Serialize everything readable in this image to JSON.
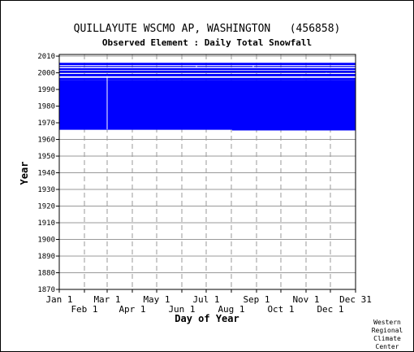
{
  "chart_data": {
    "type": "heatmap",
    "title": "QUILLAYUTE WSCMO AP, WASHINGTON   (456858)",
    "subtitle": "Observed Element : Daily Total Snowfall",
    "xlabel": "Day of Year",
    "ylabel": "Year",
    "xlim": [
      1,
      366
    ],
    "ylim": [
      1870,
      2011
    ],
    "yticks": [
      1870,
      1880,
      1890,
      1900,
      1910,
      1920,
      1930,
      1940,
      1950,
      1960,
      1970,
      1980,
      1990,
      2000,
      2010
    ],
    "xticks_top": [
      {
        "label": "Jan 1",
        "day": 1
      },
      {
        "label": "Mar 1",
        "day": 60
      },
      {
        "label": "May 1",
        "day": 121
      },
      {
        "label": "Jul 1",
        "day": 182
      },
      {
        "label": "Sep 1",
        "day": 244
      },
      {
        "label": "Nov 1",
        "day": 305
      },
      {
        "label": "Dec 31",
        "day": 366
      }
    ],
    "xticks_bottom": [
      {
        "label": "Feb 1",
        "day": 32
      },
      {
        "label": "Apr 1",
        "day": 91
      },
      {
        "label": "Jun 1",
        "day": 152
      },
      {
        "label": "Aug 1",
        "day": 213
      },
      {
        "label": "Oct 1",
        "day": 274
      },
      {
        "label": "Dec 1",
        "day": 335
      }
    ],
    "grid": true,
    "series": [
      {
        "color": "#0000ff",
        "spans": [
          {
            "start_day": 1,
            "end_day": 214,
            "start_year": 1965.8,
            "end_year": 1995.5
          },
          {
            "start_day": 214,
            "end_day": 366,
            "start_year": 1965.4,
            "end_year": 1995.5
          },
          {
            "start_day": 1,
            "end_day": 366,
            "start_year": 1995.5,
            "end_year": 1997.0
          },
          {
            "start_day": 1,
            "end_day": 366,
            "start_year": 1997.9,
            "end_year": 1999.3
          },
          {
            "start_day": 1,
            "end_day": 366,
            "start_year": 2000.0,
            "end_year": 2001.2
          },
          {
            "start_day": 1,
            "end_day": 366,
            "start_year": 2001.6,
            "end_year": 2002.8
          },
          {
            "start_day": 1,
            "end_day": 366,
            "start_year": 2003.5,
            "end_year": 2004.1
          },
          {
            "start_day": 1,
            "end_day": 366,
            "start_year": 2004.6,
            "end_year": 2006.0
          }
        ]
      }
    ],
    "missing_color": "#ffffff",
    "missing_gaps": [
      {
        "day": 60,
        "start_year": 1966,
        "end_year": 1998
      },
      {
        "day": 29,
        "start_year": 2002.8,
        "end_year": 2003.5
      },
      {
        "day": 170,
        "start_year": 2003.5,
        "end_year": 2004.4
      },
      {
        "day": 240,
        "start_year": 2003.5,
        "end_year": 2004.2
      },
      {
        "day": 300,
        "start_year": 1997.0,
        "end_year": 1997.9
      },
      {
        "day": 330,
        "start_year": 1999.3,
        "end_year": 2000.0
      }
    ],
    "footer": [
      "Western",
      "Regional",
      "Climate",
      "Center"
    ]
  },
  "colors": {
    "data": "#0000ff",
    "grid": "#999999",
    "axis": "#000000",
    "background": "#ffffff"
  }
}
